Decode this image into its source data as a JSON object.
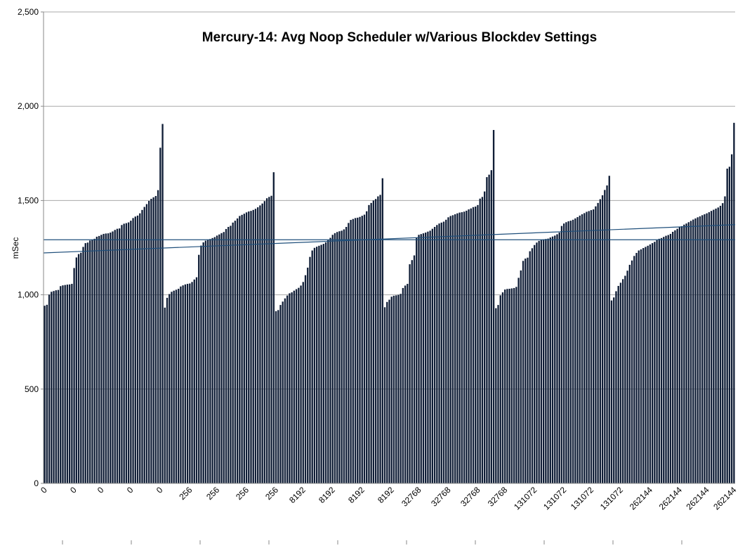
{
  "chart_data": {
    "type": "bar",
    "title": "Mercury-14: Avg Noop Scheduler w/Various Blockdev Settings",
    "xlabel": "",
    "ylabel": "mSec",
    "ylim": [
      0,
      2500
    ],
    "yticks": [
      0,
      500,
      1000,
      1500,
      2000,
      2500
    ],
    "ytick_labels": [
      "0",
      "500",
      "1,000",
      "1,500",
      "2,000",
      "2,500"
    ],
    "grid": true,
    "legend": "none",
    "groups": [
      {
        "label": "0",
        "values": [
          942,
          947,
          1001,
          1016,
          1020,
          1024,
          1026,
          1046,
          1050,
          1052,
          1054,
          1055,
          1058,
          1142,
          1198,
          1216,
          1223,
          1254,
          1274,
          1277,
          1288,
          1292,
          1297,
          1308,
          1312,
          1318,
          1323,
          1325,
          1326,
          1330,
          1336,
          1344,
          1350,
          1352,
          1370,
          1377,
          1380,
          1384,
          1393,
          1407,
          1415,
          1420,
          1432,
          1450,
          1466,
          1481,
          1498,
          1509,
          1517,
          1524,
          1555,
          1780,
          1906
        ]
      },
      {
        "label": "256",
        "values": [
          932,
          984,
          1004,
          1016,
          1022,
          1027,
          1032,
          1044,
          1050,
          1055,
          1058,
          1060,
          1068,
          1081,
          1093,
          1212,
          1261,
          1278,
          1287,
          1291,
          1296,
          1301,
          1306,
          1314,
          1320,
          1327,
          1333,
          1349,
          1360,
          1366,
          1383,
          1393,
          1405,
          1418,
          1424,
          1430,
          1437,
          1442,
          1445,
          1450,
          1456,
          1464,
          1474,
          1484,
          1497,
          1512,
          1519,
          1525,
          1650
        ]
      },
      {
        "label": "8192",
        "values": [
          913,
          919,
          946,
          964,
          981,
          996,
          1008,
          1013,
          1022,
          1030,
          1037,
          1049,
          1068,
          1104,
          1144,
          1201,
          1235,
          1249,
          1255,
          1260,
          1265,
          1270,
          1278,
          1290,
          1302,
          1318,
          1327,
          1333,
          1337,
          1340,
          1347,
          1360,
          1381,
          1397,
          1402,
          1407,
          1409,
          1413,
          1419,
          1425,
          1443,
          1476,
          1487,
          1500,
          1508,
          1522,
          1530,
          1618
        ]
      },
      {
        "label": "32768",
        "values": [
          934,
          962,
          974,
          990,
          995,
          997,
          1000,
          1005,
          1036,
          1049,
          1058,
          1162,
          1184,
          1209,
          1302,
          1318,
          1322,
          1326,
          1330,
          1335,
          1340,
          1350,
          1360,
          1370,
          1378,
          1383,
          1388,
          1398,
          1411,
          1418,
          1422,
          1427,
          1432,
          1436,
          1438,
          1441,
          1446,
          1453,
          1458,
          1465,
          1468,
          1476,
          1510,
          1519,
          1548,
          1624,
          1637,
          1661,
          1874
        ]
      },
      {
        "label": "131072",
        "values": [
          929,
          946,
          997,
          1013,
          1028,
          1031,
          1032,
          1034,
          1036,
          1042,
          1090,
          1129,
          1180,
          1192,
          1197,
          1231,
          1247,
          1264,
          1277,
          1286,
          1292,
          1294,
          1296,
          1298,
          1304,
          1309,
          1314,
          1321,
          1330,
          1365,
          1378,
          1385,
          1390,
          1393,
          1398,
          1405,
          1412,
          1420,
          1427,
          1433,
          1440,
          1444,
          1449,
          1453,
          1469,
          1487,
          1507,
          1528,
          1556,
          1580,
          1631
        ]
      },
      {
        "label": "262144",
        "values": [
          970,
          986,
          1019,
          1047,
          1064,
          1083,
          1101,
          1128,
          1159,
          1182,
          1206,
          1222,
          1235,
          1241,
          1248,
          1254,
          1260,
          1267,
          1274,
          1281,
          1290,
          1297,
          1301,
          1307,
          1313,
          1317,
          1323,
          1334,
          1342,
          1350,
          1358,
          1364,
          1372,
          1378,
          1385,
          1392,
          1399,
          1405,
          1411,
          1416,
          1422,
          1427,
          1432,
          1438,
          1445,
          1451,
          1457,
          1463,
          1472,
          1486,
          1522,
          1669,
          1679,
          1745,
          1912
        ]
      }
    ],
    "x_tick_labels": [
      "0",
      "0",
      "0",
      "0",
      "0",
      "256",
      "256",
      "256",
      "256",
      "8192",
      "8192",
      "8192",
      "8192",
      "32768",
      "32768",
      "32768",
      "32768",
      "131072",
      "131072",
      "131072",
      "131072",
      "262144",
      "262144",
      "262144",
      "262144"
    ],
    "trend_lines": [
      {
        "from": 1292,
        "to": 1292
      },
      {
        "from": 1222,
        "to": 1372
      }
    ],
    "colors": {
      "bar": "#0f1d36",
      "trend": "#1f4f7b",
      "grid": "#a8a8a8",
      "axis": "#8a8a8a"
    }
  }
}
